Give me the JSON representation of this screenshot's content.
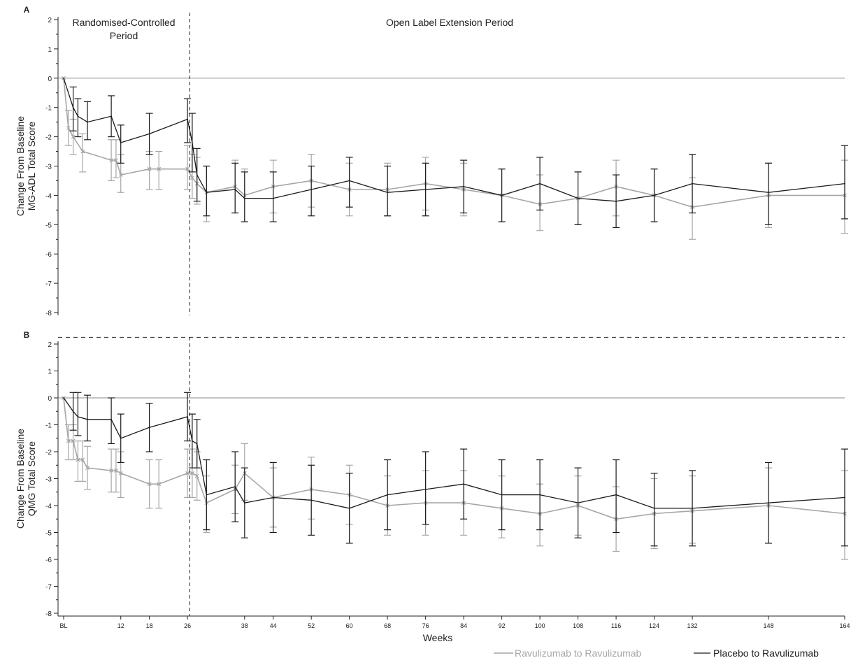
{
  "colors": {
    "series_0": "#a6a6a6",
    "series_1": "#1a1a1a",
    "axis": "#222222",
    "reference_line": "#888888"
  },
  "x_axis": {
    "label": "Weeks",
    "ticks": [
      {
        "value": 0,
        "label": "BL"
      },
      {
        "value": 12,
        "label": "12"
      },
      {
        "value": 18,
        "label": "18"
      },
      {
        "value": 26,
        "label": "26"
      },
      {
        "value": 38,
        "label": "38"
      },
      {
        "value": 44,
        "label": "44"
      },
      {
        "value": 52,
        "label": "52"
      },
      {
        "value": 60,
        "label": "60"
      },
      {
        "value": 68,
        "label": "68"
      },
      {
        "value": 76,
        "label": "76"
      },
      {
        "value": 84,
        "label": "84"
      },
      {
        "value": 92,
        "label": "92"
      },
      {
        "value": 100,
        "label": "100"
      },
      {
        "value": 108,
        "label": "108"
      },
      {
        "value": 116,
        "label": "116"
      },
      {
        "value": 124,
        "label": "124"
      },
      {
        "value": 132,
        "label": "132"
      },
      {
        "value": 148,
        "label": "148"
      },
      {
        "value": 164,
        "label": "164"
      }
    ],
    "range": [
      0,
      164
    ]
  },
  "legend": {
    "position": "bottom-right",
    "items": [
      "Ravulizumab to Ravulizumab",
      "Placebo to Ravulizumab"
    ]
  },
  "chart_data": [
    {
      "type": "line",
      "panel_label": "A",
      "ylabel": "Change From Baseline\nMG-ADL Total Score",
      "ylim": [
        -8,
        2
      ],
      "y_ticks": [
        2,
        1,
        0,
        -1,
        -2,
        -3,
        -4,
        -5,
        -6,
        -7,
        -8
      ],
      "period_divider_week": 26.5,
      "period_labels": [
        "Randomised-Controlled\nPeriod",
        "Open Label Extension Period"
      ],
      "series": [
        {
          "name": "Ravulizumab to Ravulizumab",
          "x": [
            0,
            1,
            2,
            4,
            10,
            11,
            12,
            18,
            20,
            26,
            27,
            28,
            30,
            36,
            38,
            44,
            52,
            60,
            68,
            76,
            84,
            92,
            100,
            108,
            116,
            124,
            132,
            148,
            164
          ],
          "y": [
            0,
            -1.7,
            -2.0,
            -2.5,
            -2.8,
            -2.8,
            -3.3,
            -3.1,
            -3.1,
            -3.1,
            -3.4,
            -3.6,
            -3.9,
            -3.7,
            -4.0,
            -3.7,
            -3.5,
            -3.8,
            -3.8,
            -3.6,
            -3.8,
            -4.0,
            -4.3,
            -4.1,
            -3.7,
            -4.0,
            -4.4,
            -4.0,
            -4.0
          ],
          "lower": [
            0,
            -2.3,
            -2.6,
            -3.2,
            -3.5,
            -3.4,
            -3.9,
            -3.8,
            -3.8,
            -3.8,
            -4.1,
            -4.3,
            -4.9,
            -4.6,
            -4.9,
            -4.6,
            -4.4,
            -4.7,
            -4.7,
            -4.5,
            -4.7,
            -4.9,
            -5.2,
            -5.0,
            -4.7,
            -4.9,
            -5.5,
            -5.1,
            -5.3
          ],
          "upper": [
            0,
            -1.1,
            -1.4,
            -1.9,
            -2.1,
            -2.1,
            -2.6,
            -2.5,
            -2.5,
            -2.3,
            -2.6,
            -2.7,
            -3.0,
            -2.8,
            -3.1,
            -2.8,
            -2.6,
            -2.9,
            -2.9,
            -2.7,
            -2.9,
            -3.1,
            -3.3,
            -3.2,
            -2.8,
            -3.1,
            -3.4,
            -2.9,
            -2.8
          ]
        },
        {
          "name": "Placebo to Ravulizumab",
          "x": [
            0,
            2,
            3,
            5,
            10,
            12,
            18,
            26,
            27,
            28,
            30,
            36,
            38,
            44,
            52,
            60,
            68,
            76,
            84,
            92,
            100,
            108,
            116,
            124,
            132,
            148,
            164
          ],
          "y": [
            0,
            -1.0,
            -1.3,
            -1.5,
            -1.3,
            -2.2,
            -1.9,
            -1.4,
            -2.2,
            -3.3,
            -3.9,
            -3.8,
            -4.1,
            -4.1,
            -3.8,
            -3.5,
            -3.9,
            -3.8,
            -3.7,
            -4.0,
            -3.6,
            -4.1,
            -4.2,
            -4.0,
            -3.6,
            -3.9,
            -3.6
          ],
          "lower": [
            0,
            -1.8,
            -2.0,
            -2.1,
            -2.0,
            -2.9,
            -2.6,
            -2.2,
            -3.2,
            -4.2,
            -4.7,
            -4.6,
            -4.9,
            -4.9,
            -4.7,
            -4.4,
            -4.7,
            -4.7,
            -4.6,
            -4.9,
            -4.5,
            -5.0,
            -5.1,
            -4.9,
            -4.6,
            -5.0,
            -4.8
          ],
          "upper": [
            0,
            -0.3,
            -0.7,
            -0.8,
            -0.6,
            -1.6,
            -1.2,
            -0.7,
            -1.2,
            -2.4,
            -3.0,
            -2.9,
            -3.2,
            -3.2,
            -3.0,
            -2.7,
            -3.0,
            -2.9,
            -2.8,
            -3.1,
            -2.7,
            -3.2,
            -3.3,
            -3.1,
            -2.6,
            -2.9,
            -2.3
          ]
        }
      ]
    },
    {
      "type": "line",
      "panel_label": "B",
      "ylabel": "Change From Baseline\nQMG Total Score",
      "ylim": [
        -8,
        2
      ],
      "y_ticks": [
        2,
        1,
        0,
        -1,
        -2,
        -3,
        -4,
        -5,
        -6,
        -7,
        -8
      ],
      "period_divider_week": 26.5,
      "series": [
        {
          "name": "Ravulizumab to Ravulizumab",
          "x": [
            0,
            1,
            2,
            3,
            4,
            5,
            10,
            11,
            12,
            18,
            20,
            26,
            27,
            28,
            30,
            36,
            38,
            44,
            52,
            60,
            68,
            76,
            84,
            92,
            100,
            108,
            116,
            124,
            132,
            148,
            164
          ],
          "y": [
            0,
            -1.6,
            -1.6,
            -2.3,
            -2.3,
            -2.6,
            -2.7,
            -2.7,
            -2.8,
            -3.2,
            -3.2,
            -2.8,
            -2.8,
            -2.9,
            -3.9,
            -3.4,
            -2.8,
            -3.7,
            -3.4,
            -3.6,
            -4.0,
            -3.9,
            -3.9,
            -4.1,
            -4.3,
            -4.0,
            -4.5,
            -4.3,
            -4.2,
            -4.0,
            -4.3
          ],
          "lower": [
            0,
            -2.3,
            -2.3,
            -3.1,
            -3.1,
            -3.4,
            -3.5,
            -3.5,
            -3.7,
            -4.1,
            -4.1,
            -3.7,
            -3.7,
            -3.8,
            -5.0,
            -4.3,
            -3.8,
            -4.8,
            -4.5,
            -4.7,
            -5.1,
            -5.1,
            -5.1,
            -5.2,
            -5.5,
            -5.1,
            -5.7,
            -5.6,
            -5.4,
            -5.4,
            -6.0
          ],
          "upper": [
            0,
            -1.0,
            -1.0,
            -1.6,
            -1.6,
            -1.8,
            -1.9,
            -1.9,
            -2.0,
            -2.3,
            -2.3,
            -1.9,
            -1.9,
            -2.0,
            -2.9,
            -2.5,
            -1.7,
            -2.6,
            -2.2,
            -2.5,
            -2.9,
            -2.7,
            -2.7,
            -2.9,
            -3.2,
            -2.9,
            -3.3,
            -3.0,
            -2.9,
            -2.6,
            -2.7
          ]
        },
        {
          "name": "Placebo to Ravulizumab",
          "x": [
            0,
            2,
            3,
            5,
            10,
            12,
            18,
            26,
            27,
            28,
            30,
            36,
            38,
            44,
            52,
            60,
            68,
            76,
            84,
            92,
            100,
            108,
            116,
            124,
            132,
            148,
            164
          ],
          "y": [
            0,
            -0.5,
            -0.7,
            -0.8,
            -0.8,
            -1.5,
            -1.1,
            -0.7,
            -1.6,
            -1.7,
            -3.6,
            -3.3,
            -3.9,
            -3.7,
            -3.8,
            -4.1,
            -3.6,
            -3.4,
            -3.2,
            -3.6,
            -3.6,
            -3.9,
            -3.6,
            -4.1,
            -4.1,
            -3.9,
            -3.7
          ],
          "lower": [
            0,
            -1.2,
            -1.4,
            -1.6,
            -1.7,
            -2.4,
            -2.0,
            -1.6,
            -2.6,
            -2.6,
            -4.9,
            -4.6,
            -5.2,
            -5.0,
            -5.1,
            -5.4,
            -4.9,
            -4.7,
            -4.5,
            -4.9,
            -4.9,
            -5.2,
            -5.0,
            -5.5,
            -5.5,
            -5.4,
            -5.5
          ],
          "upper": [
            0,
            0.2,
            0.2,
            0.1,
            0.0,
            -0.6,
            -0.2,
            0.2,
            -0.6,
            -0.8,
            -2.3,
            -2.0,
            -2.6,
            -2.4,
            -2.5,
            -2.8,
            -2.3,
            -2.0,
            -1.9,
            -2.3,
            -2.3,
            -2.6,
            -2.3,
            -2.8,
            -2.7,
            -2.4,
            -1.9
          ]
        }
      ]
    }
  ]
}
